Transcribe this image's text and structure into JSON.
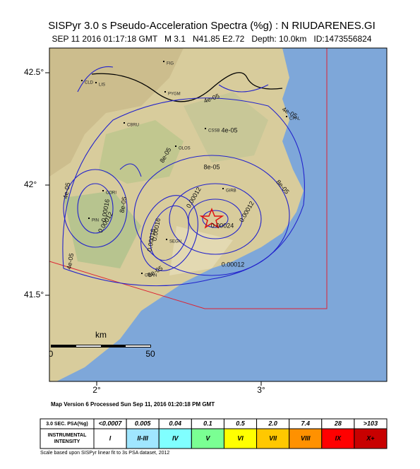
{
  "header": {
    "title": "SISPyr 3.0 s Pseudo-Acceleration Spectra (%g) : N RIUDARENES.GI",
    "subtitle": "SEP 11 2016 01:17:18 GMT   M 3.1   N41.85 E2.72   Depth: 10.0km   ID:1473556824"
  },
  "map": {
    "lat_labels": [
      "42.5°",
      "42°",
      "41.5°"
    ],
    "lon_labels": [
      "2°",
      "3°"
    ],
    "scale": {
      "unit": "km",
      "start": "0",
      "end": "50"
    },
    "contour_labels": [
      "4e-05",
      "4e-05",
      "4e-05",
      "8e-05",
      "8e-05",
      "8e-05",
      "8e-05",
      "0.00012",
      "0.00012",
      "0.00016",
      "0.00016",
      "0.00012",
      "0.00016",
      "0.00024",
      "0.00012",
      "4e-05",
      "4e-05",
      "8e-05"
    ],
    "places": [
      "FIG",
      "CLD",
      "LIS",
      "PYGM",
      "CBRU",
      "CSSB",
      "OLOS",
      "CORI",
      "GIRB",
      "CPAL",
      "GRAN",
      "SEGN",
      "PIN"
    ]
  },
  "footer": {
    "version": "Map Version 6 Processed Sun Sep 11, 2016 01:20:18 PM GMT",
    "note": "Scale based upon SISPyr linear fit to 3s PSA dataset, 2012"
  },
  "legend": {
    "psa_header": "3.0 SEC. PSA(%g)",
    "psa": [
      "<0.0007",
      "0.005",
      "0.04",
      "0.1",
      "0.5",
      "2.0",
      "7.4",
      "28",
      ">103"
    ],
    "intensity_header": [
      "INSTRUMENTAL",
      "INTENSITY"
    ],
    "intensity": [
      "I",
      "II-III",
      "IV",
      "V",
      "VI",
      "VII",
      "VIII",
      "IX",
      "X+"
    ]
  }
}
